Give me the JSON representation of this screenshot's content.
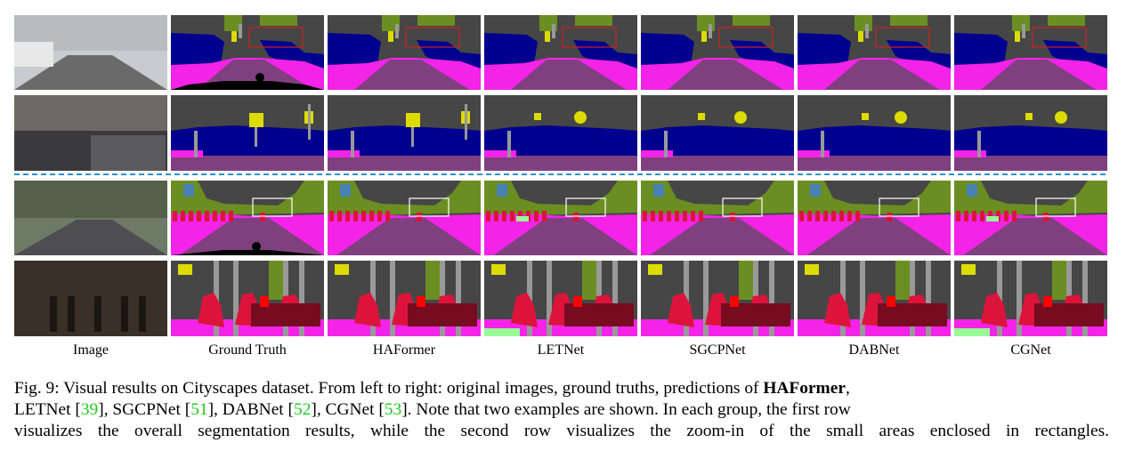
{
  "figure": {
    "columns": [
      "Image",
      "Ground Truth",
      "HAFormer",
      "LETNet",
      "SGCPNet",
      "DABNet",
      "CGNet"
    ],
    "rows": [
      {
        "group": 1,
        "kind": "overall"
      },
      {
        "group": 1,
        "kind": "zoom-in"
      },
      {
        "group": 2,
        "kind": "overall"
      },
      {
        "group": 2,
        "kind": "zoom-in"
      }
    ],
    "colors": {
      "road": "#80407f",
      "sidewalk": "#f423e8",
      "car": "#00008e",
      "vegetation": "#6b8e23",
      "building": "#464646",
      "person": "#dc143c",
      "rider": "#ff0000",
      "pole": "#999999",
      "traffic_sign": "#dcdc00",
      "traffic_light": "#faaa1e",
      "sky": "#4682b4",
      "terrain": "#98fb98",
      "bicycle": "#770b20",
      "void": "#000000",
      "divider": "#2a8fd6"
    }
  },
  "caption": {
    "prefix": "Fig. 9: Visual results on Cityscapes dataset. From left to right: original images, ground truths, predictions of ",
    "bold": "HAFormer",
    "after_bold": ",",
    "line2_a": "LETNet [",
    "ref1": "39",
    "line2_b": "], SGCPNet [",
    "ref2": "51",
    "line2_c": "], DABNet [",
    "ref3": "52",
    "line2_d": "], CGNet [",
    "ref4": "53",
    "line2_e": "]. Note that two examples are shown. In each group, the first row",
    "line3": "visualizes the overall segmentation results, while the second row visualizes the zoom-in of the small areas enclosed in rectangles."
  }
}
